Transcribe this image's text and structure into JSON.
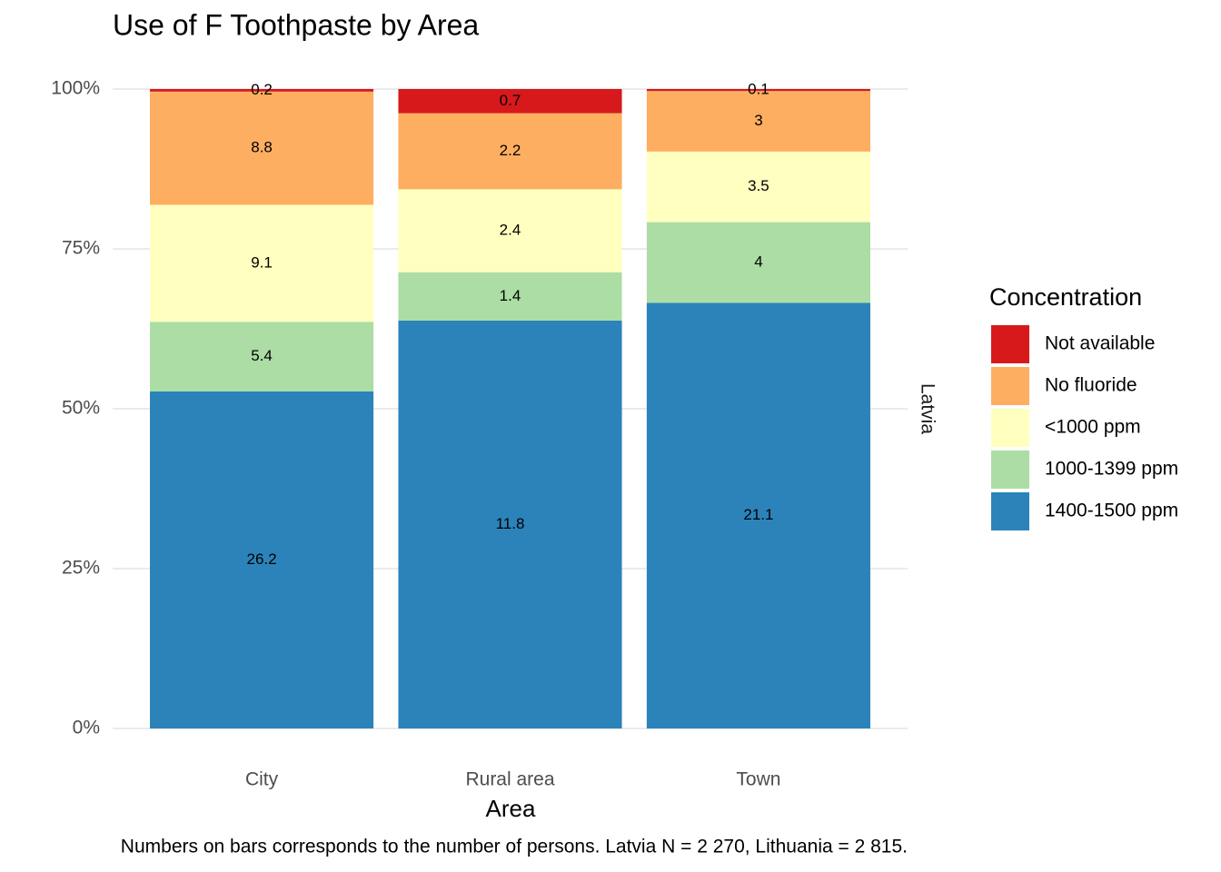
{
  "chart_data": {
    "type": "bar",
    "stacking": "percent",
    "title": "Use of F Toothpaste by Area",
    "x_label": "Area",
    "facet": "Latvia",
    "caption": "Numbers on bars corresponds to the number of persons. Latvia N = 2 270, Lithuania = 2 815.",
    "legend_title": "Concentration",
    "legend_position": "right",
    "categories": [
      "City",
      "Rural area",
      "Town"
    ],
    "series": [
      {
        "name": "Not available",
        "color": "#d7191c",
        "values": [
          0.2,
          0.7,
          0.1
        ]
      },
      {
        "name": "No fluoride",
        "color": "#fdae61",
        "values": [
          8.8,
          2.2,
          3
        ]
      },
      {
        "name": "<1000 ppm",
        "color": "#ffffbf",
        "values": [
          9.1,
          2.4,
          3.5
        ]
      },
      {
        "name": "1000-1399 ppm",
        "color": "#abdda4",
        "values": [
          5.4,
          1.4,
          4
        ]
      },
      {
        "name": "1400-1500 ppm",
        "color": "#2b83ba",
        "values": [
          26.2,
          11.8,
          21.1
        ]
      }
    ],
    "ylim": [
      0,
      100
    ],
    "yticks": [
      {
        "value": 0,
        "label": "0%"
      },
      {
        "value": 25,
        "label": "25%"
      },
      {
        "value": 50,
        "label": "50%"
      },
      {
        "value": 75,
        "label": "75%"
      },
      {
        "value": 100,
        "label": "100%"
      }
    ],
    "grid": true
  }
}
